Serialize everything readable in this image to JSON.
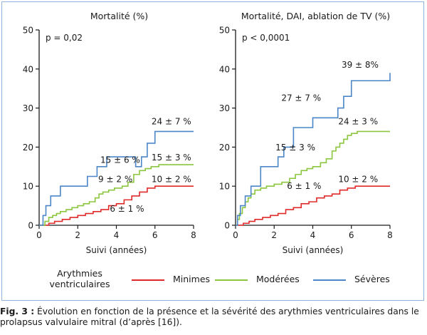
{
  "chart_data": [
    {
      "type": "line",
      "title": "Mortalité (%)",
      "xlabel": "Suivi (années)",
      "ylabel": "",
      "xlim": [
        0,
        8
      ],
      "ylim": [
        0,
        50
      ],
      "xticks": [
        0,
        2,
        4,
        6,
        8
      ],
      "yticks": [
        0,
        10,
        20,
        30,
        40,
        50
      ],
      "p_value": "p = 0,02",
      "series": [
        {
          "name": "Minimes",
          "color": "#e02a2a",
          "x": [
            0,
            0.5,
            0.8,
            1.2,
            1.6,
            2.0,
            2.4,
            2.8,
            3.2,
            3.6,
            4.0,
            4.4,
            4.8,
            5.2,
            5.6,
            6.0,
            8.0
          ],
          "y": [
            0,
            0.5,
            1.0,
            1.5,
            2.0,
            2.5,
            3.0,
            3.5,
            4.0,
            5.0,
            5.5,
            6.5,
            7.5,
            8.5,
            9.5,
            10,
            10
          ]
        },
        {
          "name": "Modérées",
          "color": "#8cc63f",
          "x": [
            0,
            0.3,
            0.5,
            0.7,
            0.9,
            1.1,
            1.4,
            1.7,
            2.0,
            2.3,
            2.6,
            2.9,
            3.1,
            3.3,
            3.6,
            3.9,
            4.3,
            4.6,
            4.9,
            5.2,
            5.5,
            5.8,
            6.2,
            8.0
          ],
          "y": [
            0,
            1.0,
            2.0,
            2.5,
            3.0,
            3.5,
            4.0,
            4.5,
            5.0,
            5.5,
            6.0,
            7.0,
            8.0,
            8.5,
            9.0,
            9.5,
            10,
            11,
            13,
            14,
            14.5,
            15,
            15.5,
            15.5
          ]
        },
        {
          "name": "Sévères",
          "color": "#4a86c8",
          "x": [
            0,
            0.2,
            0.35,
            0.6,
            1.1,
            2.5,
            3.0,
            3.5,
            5.0,
            5.3,
            5.6,
            6.0,
            8.0
          ],
          "y": [
            0,
            2.5,
            5.0,
            7.5,
            10,
            12.5,
            15,
            17.5,
            15,
            17.5,
            21,
            24,
            24
          ]
        }
      ],
      "annotations": [
        {
          "text": "24 ± 7 %",
          "x": 6.85,
          "y": 25.8
        },
        {
          "text": "15 ± 3 %",
          "x": 6.85,
          "y": 16.6
        },
        {
          "text": "10 ± 2 %",
          "x": 6.85,
          "y": 11.0
        },
        {
          "text": "15 ± 6 %",
          "x": 4.2,
          "y": 16.0
        },
        {
          "text": "9 ± 2 %",
          "x": 3.95,
          "y": 11.0
        },
        {
          "text": "6 ± 1 %",
          "x": 4.55,
          "y": 3.5
        }
      ]
    },
    {
      "type": "line",
      "title": "Mortalité, DAI, ablation de TV (%)",
      "xlabel": "Suivi (années)",
      "ylabel": "",
      "xlim": [
        0,
        8
      ],
      "ylim": [
        0,
        50
      ],
      "xticks": [
        0,
        2,
        4,
        6,
        8
      ],
      "yticks": [
        0,
        10,
        20,
        30,
        40,
        50
      ],
      "p_value": "p < 0,0001",
      "series": [
        {
          "name": "Minimes",
          "color": "#e02a2a",
          "x": [
            0,
            0.4,
            0.7,
            1.0,
            1.4,
            1.8,
            2.2,
            2.6,
            3.0,
            3.4,
            3.8,
            4.2,
            4.6,
            5.0,
            5.4,
            5.8,
            6.2,
            8.0
          ],
          "y": [
            0,
            0.5,
            1.0,
            1.5,
            2.0,
            2.5,
            3.0,
            4.0,
            4.5,
            5.5,
            6.0,
            7.0,
            7.5,
            8.0,
            9.0,
            9.5,
            10,
            10
          ]
        },
        {
          "name": "Modérées",
          "color": "#8cc63f",
          "x": [
            0,
            0.1,
            0.2,
            0.35,
            0.5,
            0.65,
            0.8,
            1.0,
            1.3,
            1.6,
            2.0,
            2.4,
            2.8,
            3.1,
            3.4,
            3.7,
            4.0,
            4.4,
            4.7,
            5.0,
            5.2,
            5.4,
            5.6,
            5.8,
            6.0,
            6.3,
            8.0
          ],
          "y": [
            0,
            1.5,
            3.0,
            4.5,
            6.0,
            7.0,
            8.0,
            9.0,
            9.5,
            10,
            10.5,
            11,
            12,
            13,
            14,
            14.5,
            15,
            16,
            17,
            19,
            20,
            21,
            22,
            23,
            23.5,
            24,
            24
          ]
        },
        {
          "name": "Sévères",
          "color": "#4a86c8",
          "x": [
            0,
            0.1,
            0.25,
            0.5,
            0.8,
            1.3,
            2.2,
            2.5,
            3.0,
            4.0,
            5.3,
            5.6,
            6.0,
            8.0
          ],
          "y": [
            0,
            2.5,
            5.0,
            7.5,
            10,
            15,
            17.5,
            20,
            25,
            27.5,
            30,
            33,
            37,
            39
          ]
        }
      ],
      "annotations": [
        {
          "text": "39 ± 8%",
          "x": 6.45,
          "y": 40.3
        },
        {
          "text": "27 ± 7 %",
          "x": 3.4,
          "y": 31.8
        },
        {
          "text": "24 ± 3 %",
          "x": 6.35,
          "y": 25.8
        },
        {
          "text": "15 ± 3 %",
          "x": 3.1,
          "y": 19.2
        },
        {
          "text": "10 ± 2 %",
          "x": 6.35,
          "y": 11.0
        },
        {
          "text": "6 ± 1 %",
          "x": 3.55,
          "y": 9.3
        }
      ]
    }
  ],
  "legend": {
    "title": "Arythmies ventriculaires",
    "items": [
      {
        "label": "Minimes",
        "color": "#e02a2a"
      },
      {
        "label": "Modérées",
        "color": "#8cc63f"
      },
      {
        "label": "Sévères",
        "color": "#4a86c8"
      }
    ]
  },
  "caption": {
    "label": "Fig. 3 :",
    "text": " Évolution en fonction de la présence et la sévérité des arythmies ventriculaires dans le prolapsus valvulaire mitral (d’après [16])."
  }
}
